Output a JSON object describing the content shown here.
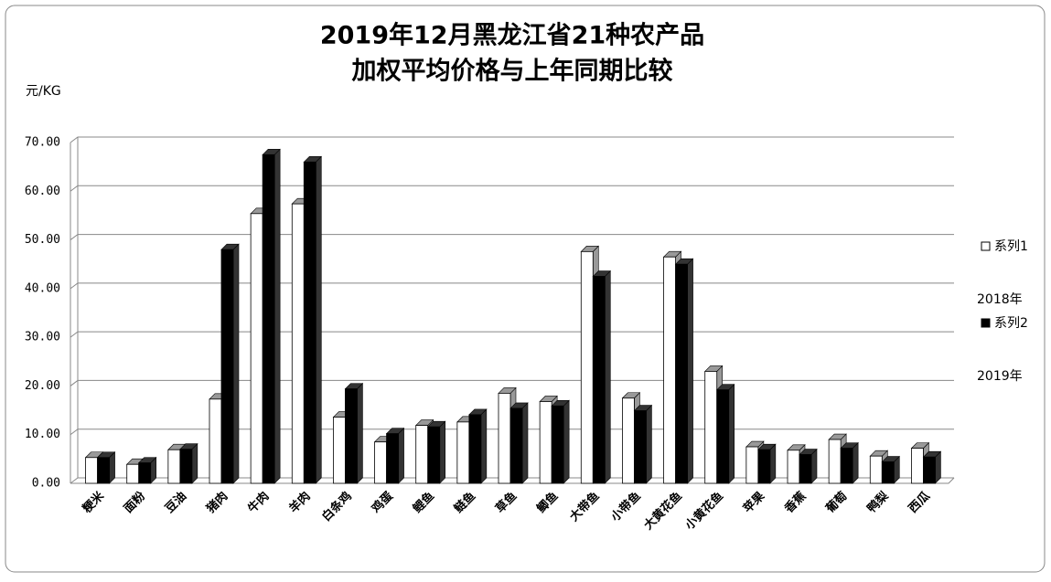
{
  "chart_data": {
    "type": "bar3d",
    "title": "2019年12月黑龙江省21种农产品",
    "subtitle": "加权平均价格与上年同期比较",
    "y_label": "元/KG",
    "categories": [
      "粳米",
      "面粉",
      "豆油",
      "猪肉",
      "牛肉",
      "羊肉",
      "白条鸡",
      "鸡蛋",
      "鲤鱼",
      "鲢鱼",
      "草鱼",
      "鲫鱼",
      "大带鱼",
      "小带鱼",
      "大黄花鱼",
      "小黄花鱼",
      "苹果",
      "香蕉",
      "葡萄",
      "鸭梨",
      "西瓜"
    ],
    "series": [
      {
        "name": "系列1",
        "note": "2018年",
        "color": "#ffffff",
        "values": [
          5.3,
          3.9,
          6.9,
          17.3,
          55.4,
          57.4,
          13.6,
          8.5,
          11.9,
          12.6,
          18.5,
          16.8,
          47.6,
          17.5,
          46.5,
          23.0,
          7.5,
          6.8,
          9.0,
          5.6,
          7.2
        ]
      },
      {
        "name": "系列2",
        "note": "2019年",
        "color": "#000000",
        "values": [
          5.3,
          4.2,
          7.0,
          48.0,
          67.5,
          66.0,
          19.4,
          10.2,
          11.6,
          14.1,
          15.4,
          15.9,
          42.5,
          14.9,
          45.0,
          19.2,
          6.9,
          5.9,
          7.2,
          4.4,
          5.4
        ]
      }
    ],
    "ylim": [
      0,
      70
    ],
    "yticks": [
      {
        "value": 0,
        "label": "0.00"
      },
      {
        "value": 10,
        "label": "10.00"
      },
      {
        "value": 20,
        "label": "20.00"
      },
      {
        "value": 30,
        "label": "30.00"
      },
      {
        "value": 40,
        "label": "40.00"
      },
      {
        "value": 50,
        "label": "50.00"
      },
      {
        "value": 60,
        "label": "60.00"
      },
      {
        "value": 70,
        "label": "70.00"
      }
    ],
    "grid": true
  }
}
